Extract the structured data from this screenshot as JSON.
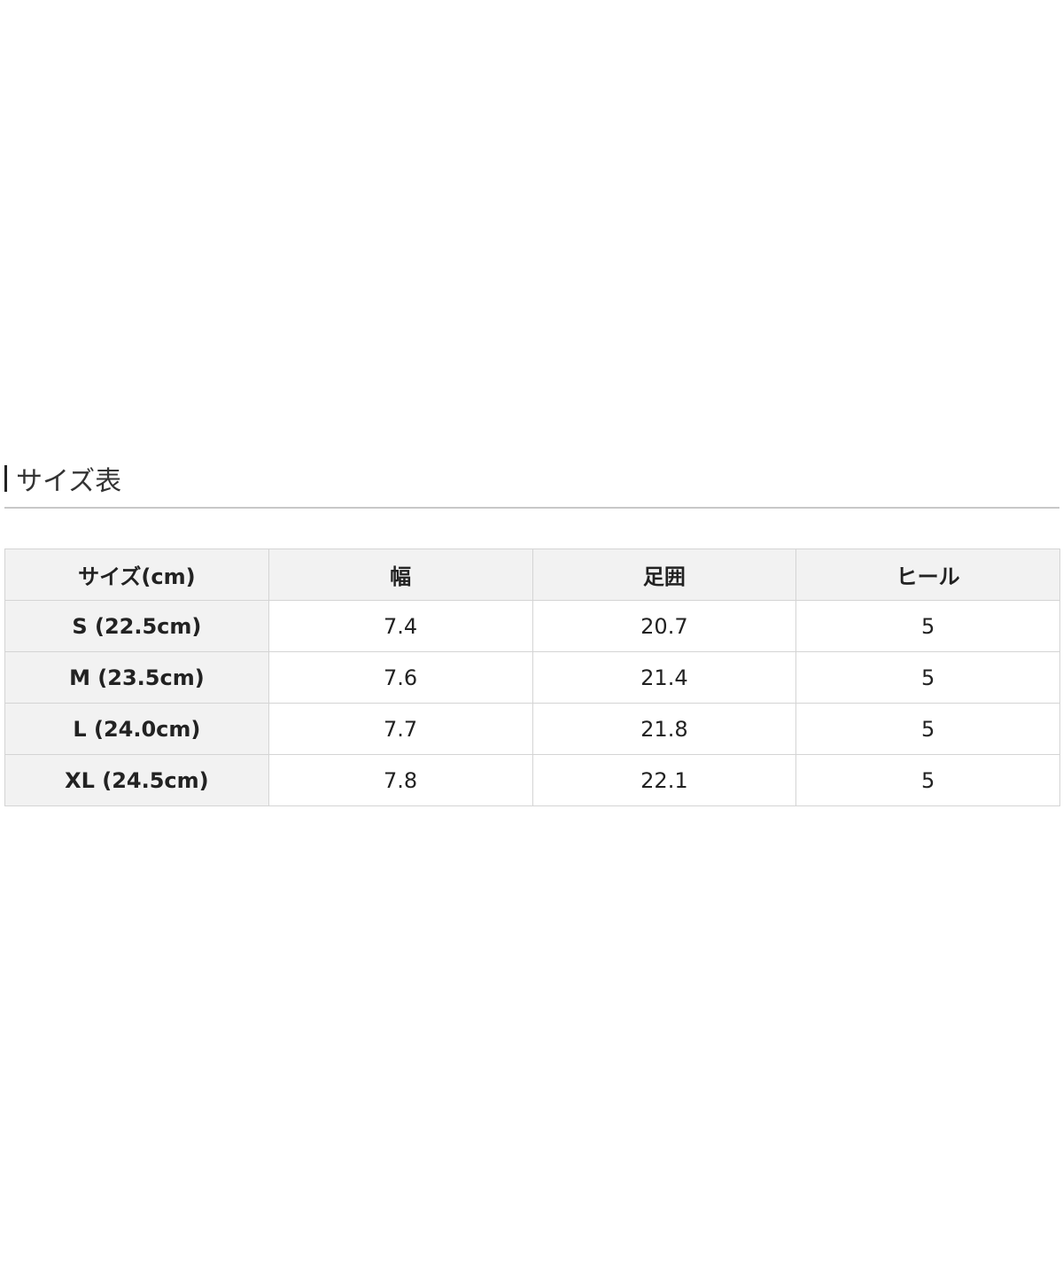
{
  "section_title": "サイズ表",
  "table": {
    "headers": [
      "サイズ(cm)",
      "幅",
      "足囲",
      "ヒール"
    ],
    "rows": [
      [
        "S (22.5cm)",
        "7.4",
        "20.7",
        "5"
      ],
      [
        "M (23.5cm)",
        "7.6",
        "21.4",
        "5"
      ],
      [
        "L (24.0cm)",
        "7.7",
        "21.8",
        "5"
      ],
      [
        "XL (24.5cm)",
        "7.8",
        "22.1",
        "5"
      ]
    ]
  }
}
